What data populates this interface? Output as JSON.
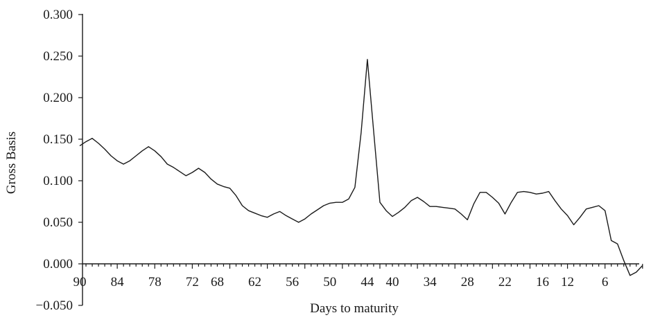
{
  "chart_data": {
    "type": "line",
    "title": "",
    "xlabel": "Days to maturity",
    "ylabel": "Gross Basis",
    "xlim": [
      90,
      0
    ],
    "ylim": [
      -0.05,
      0.3
    ],
    "x_reversed": true,
    "grid": false,
    "y_tick_labels": [
      "−0.050",
      "0.000",
      "0.050",
      "0.100",
      "0.150",
      "0.200",
      "0.250",
      "0.300"
    ],
    "y_tick_values": [
      -0.05,
      0,
      0.05,
      0.1,
      0.15,
      0.2,
      0.25,
      0.3
    ],
    "x_tick_labels": [
      "90",
      "84",
      "78",
      "72",
      "68",
      "62",
      "56",
      "50",
      "44",
      "40",
      "34",
      "28",
      "22",
      "16",
      "12",
      "6"
    ],
    "x_tick_values": [
      90,
      84,
      78,
      72,
      68,
      62,
      56,
      50,
      44,
      40,
      34,
      28,
      22,
      16,
      12,
      6
    ],
    "series": [
      {
        "x": [
          90,
          89,
          88,
          87,
          86,
          85,
          84,
          83,
          82,
          81,
          80,
          79,
          78,
          77,
          76,
          75,
          74,
          73,
          72,
          71,
          70,
          69,
          68,
          67,
          66,
          65,
          64,
          63,
          62,
          61,
          60,
          59,
          58,
          57,
          56,
          55,
          54,
          53,
          52,
          51,
          50,
          49,
          48,
          47,
          46,
          45,
          44,
          43,
          42,
          41,
          40,
          39,
          38,
          37,
          36,
          35,
          34,
          33,
          32,
          31,
          30,
          29,
          28,
          27,
          26,
          25,
          24,
          23,
          22,
          21,
          20,
          19,
          18,
          17,
          16,
          15,
          14,
          13,
          12,
          11,
          10,
          9,
          8,
          7,
          6,
          5,
          4,
          3,
          2,
          1,
          0
        ],
        "values": [
          0.142,
          0.147,
          0.151,
          0.145,
          0.138,
          0.13,
          0.124,
          0.12,
          0.124,
          0.13,
          0.136,
          0.141,
          0.136,
          0.129,
          0.12,
          0.116,
          0.111,
          0.106,
          0.11,
          0.115,
          0.11,
          0.102,
          0.096,
          0.093,
          0.091,
          0.082,
          0.07,
          0.064,
          0.061,
          0.058,
          0.056,
          0.06,
          0.063,
          0.058,
          0.054,
          0.05,
          0.054,
          0.06,
          0.065,
          0.07,
          0.073,
          0.074,
          0.074,
          0.078,
          0.092,
          0.158,
          0.246,
          0.16,
          0.074,
          0.064,
          0.057,
          0.062,
          0.068,
          0.076,
          0.08,
          0.075,
          0.069,
          0.069,
          0.068,
          0.067,
          0.066,
          0.06,
          0.053,
          0.072,
          0.086,
          0.086,
          0.08,
          0.073,
          0.06,
          0.074,
          0.086,
          0.087,
          0.086,
          0.084,
          0.085,
          0.087,
          0.076,
          0.066,
          0.058,
          0.047,
          0.056,
          0.066,
          0.068,
          0.07,
          0.064,
          0.028,
          0.024,
          0.004,
          -0.014,
          -0.01,
          -0.002
        ]
      }
    ]
  }
}
